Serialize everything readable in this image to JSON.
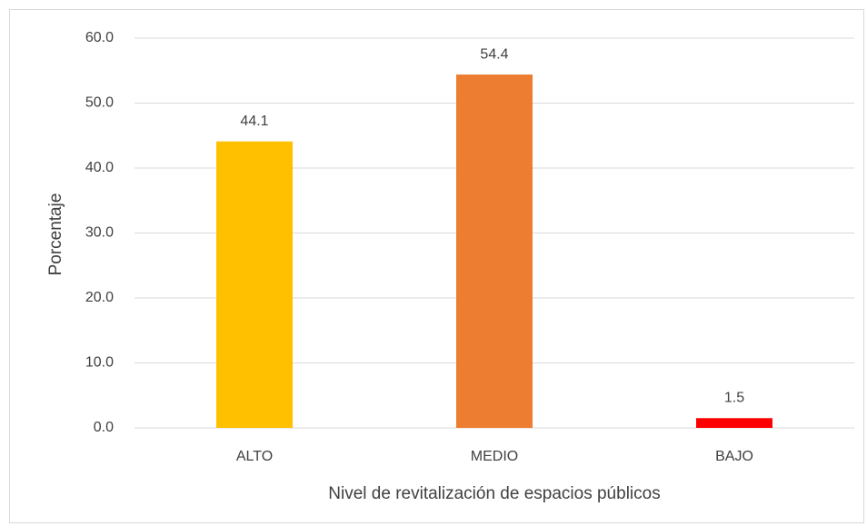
{
  "chart_data": {
    "type": "bar",
    "x_label": "Nivel de revitalización de espacios públicos",
    "y_label": "Porcentaje",
    "categories": [
      "ALTO",
      "MEDIO",
      "BAJO"
    ],
    "values": [
      44.1,
      54.4,
      1.5
    ],
    "colors": [
      "#ffc000",
      "#ed7d31",
      "#ff0000"
    ],
    "ylim": [
      0,
      60
    ],
    "yticks": [
      {
        "value": 0,
        "label": "0.0"
      },
      {
        "value": 10,
        "label": "10.0"
      },
      {
        "value": 20,
        "label": "20.0"
      },
      {
        "value": 30,
        "label": "30.0"
      },
      {
        "value": 40,
        "label": "40.0"
      },
      {
        "value": 50,
        "label": "50.0"
      },
      {
        "value": 60,
        "label": "60.0"
      }
    ],
    "grid": true
  }
}
